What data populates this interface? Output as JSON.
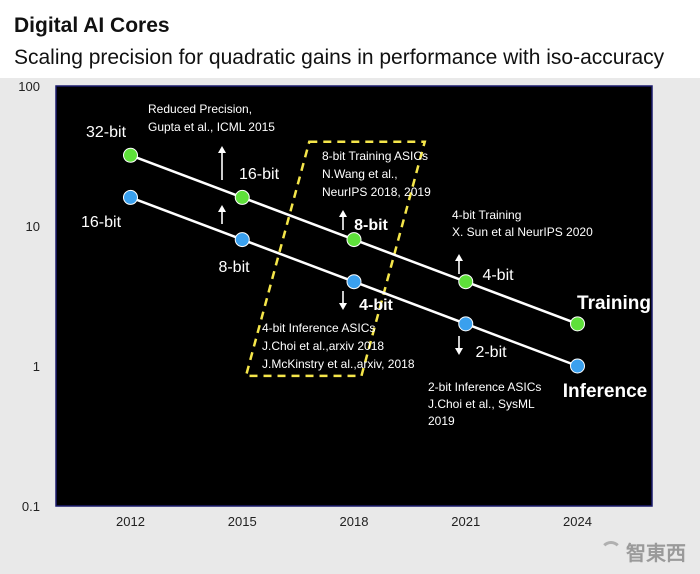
{
  "header": {
    "title": "Digital AI Cores",
    "subtitle": "Scaling precision for quadratic gains in performance with iso-accuracy"
  },
  "colors": {
    "plot_background": "#000000",
    "frame_background": "#e9e9e9",
    "training_marker": "#5ee03a",
    "inference_marker": "#3aa0ee",
    "line": "#ffffff",
    "box": "#f5e64a"
  },
  "chart_data": {
    "type": "line",
    "title": "",
    "xlabel": "",
    "ylabel": "",
    "y_scale": "log",
    "ylim": [
      0.1,
      100
    ],
    "y_ticks": [
      "100",
      "10",
      "1",
      "0.1"
    ],
    "x_ticks": [
      "2012",
      "2015",
      "2018",
      "2021",
      "2024"
    ],
    "grid": false,
    "legend": "none",
    "series": [
      {
        "name": "Training",
        "points": [
          {
            "x": 2012,
            "y": 32
          },
          {
            "x": 2015,
            "y": 16
          },
          {
            "x": 2018,
            "y": 8
          },
          {
            "x": 2021,
            "y": 4
          },
          {
            "x": 2024,
            "y": 2
          }
        ]
      },
      {
        "name": "Inference",
        "points": [
          {
            "x": 2012,
            "y": 16
          },
          {
            "x": 2015,
            "y": 8
          },
          {
            "x": 2018,
            "y": 4
          },
          {
            "x": 2021,
            "y": 2
          },
          {
            "x": 2024,
            "y": 1
          }
        ]
      }
    ],
    "point_labels": {
      "training": [
        "32-bit",
        "16-bit",
        "8-bit",
        "4-bit"
      ],
      "inference": [
        "16-bit",
        "8-bit",
        "4-bit",
        "2-bit"
      ]
    },
    "annotations": {
      "reduced_precision": [
        "Reduced Precision,",
        "Gupta et al., ICML 2015"
      ],
      "training_asics": [
        "8-bit Training ASICs",
        "N.Wang et al.,",
        "NeurIPS 2018, 2019"
      ],
      "training_4bit": [
        "4-bit Training",
        "X. Sun et al NeurIPS 2020"
      ],
      "inference_asics": [
        "4-bit Inference ASICs",
        "J.Choi et al.,arxiv 2018",
        "J.McKinstry et al.,arxiv, 2018"
      ],
      "inference_2bit": [
        "2-bit Inference ASICs",
        "J.Choi et al., SysML",
        "2019"
      ]
    }
  },
  "watermark": {
    "text": "智東西"
  }
}
